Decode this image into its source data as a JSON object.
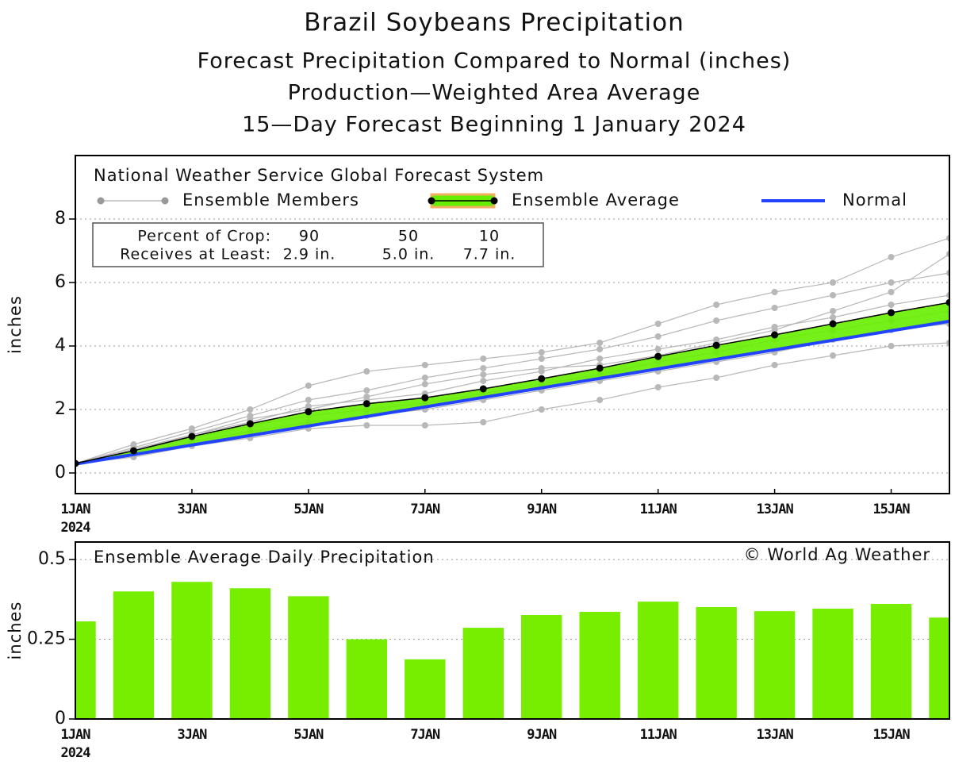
{
  "chart_data": [
    {
      "type": "line",
      "title": "Brazil Soybeans Precipitation",
      "subtitles": [
        "Forecast Precipitation Compared to Normal (inches)",
        "Production—Weighted Area Average",
        "15—Day Forecast Beginning 1 January 2024"
      ],
      "source": "National Weather Service Global Forecast System",
      "y_label": "inches",
      "x": [
        1,
        2,
        3,
        4,
        5,
        6,
        7,
        8,
        9,
        10,
        11,
        12,
        13,
        14,
        15,
        16
      ],
      "xlim": [
        1,
        16
      ],
      "xticks": [
        {
          "value": 1,
          "label": "1JAN"
        },
        {
          "value": 3,
          "label": "3JAN"
        },
        {
          "value": 5,
          "label": "5JAN"
        },
        {
          "value": 7,
          "label": "7JAN"
        },
        {
          "value": 9,
          "label": "9JAN"
        },
        {
          "value": 11,
          "label": "11JAN"
        },
        {
          "value": 13,
          "label": "13JAN"
        },
        {
          "value": 15,
          "label": "15JAN"
        }
      ],
      "x_year_label": "2024",
      "ylim": [
        -0.65,
        10
      ],
      "yticks": [
        0,
        2,
        4,
        6,
        8
      ],
      "grid": true,
      "members": {
        "name": "Ensemble Members",
        "color": "#b8b8b8",
        "values": [
          [
            0.3,
            0.9,
            1.4,
            2.0,
            2.75,
            3.2,
            3.4,
            3.6,
            3.8,
            4.1,
            4.7,
            5.3,
            5.7,
            6.0,
            6.8,
            7.4
          ],
          [
            0.3,
            0.5,
            0.85,
            1.1,
            1.4,
            1.5,
            1.5,
            1.6,
            2.0,
            2.3,
            2.7,
            3.0,
            3.4,
            3.7,
            4.0,
            4.1
          ],
          [
            0.3,
            0.8,
            1.3,
            1.8,
            2.3,
            2.6,
            3.0,
            3.3,
            3.6,
            3.9,
            4.3,
            4.8,
            5.2,
            5.6,
            6.0,
            6.3
          ],
          [
            0.3,
            0.6,
            1.0,
            1.3,
            1.6,
            1.8,
            2.0,
            2.3,
            2.6,
            2.9,
            3.2,
            3.5,
            3.8,
            4.2,
            4.5,
            4.7
          ],
          [
            0.3,
            0.7,
            1.2,
            1.6,
            2.1,
            2.3,
            2.5,
            2.9,
            3.2,
            3.6,
            3.9,
            4.2,
            4.6,
            4.9,
            5.3,
            5.6
          ],
          [
            0.3,
            0.65,
            1.1,
            1.5,
            1.8,
            2.0,
            2.2,
            2.5,
            2.8,
            3.1,
            3.5,
            3.8,
            4.2,
            4.5,
            4.8,
            5.1
          ],
          [
            0.3,
            0.75,
            1.2,
            1.7,
            2.0,
            2.4,
            2.8,
            3.1,
            3.3,
            3.4,
            3.7,
            4.1,
            4.5,
            5.1,
            5.7,
            6.9
          ]
        ]
      },
      "series": [
        {
          "name": "Ensemble Average",
          "color": "#000000",
          "fill": "#66ee00",
          "outline": "#f0b060",
          "values": [
            0.3,
            0.7,
            1.15,
            1.55,
            1.93,
            2.18,
            2.37,
            2.65,
            2.97,
            3.3,
            3.67,
            4.02,
            4.35,
            4.7,
            5.05,
            5.37
          ]
        },
        {
          "name": "Normal",
          "color": "#2244ff",
          "values": [
            0.28,
            0.58,
            0.88,
            1.18,
            1.48,
            1.78,
            2.08,
            2.38,
            2.68,
            2.98,
            3.28,
            3.58,
            3.88,
            4.18,
            4.48,
            4.78
          ]
        }
      ],
      "crop_table": {
        "row_labels": [
          "Percent of Crop:",
          "Receives at Least:"
        ],
        "percents": [
          90,
          50,
          10
        ],
        "amounts": [
          2.9,
          5.0,
          7.7
        ],
        "amount_labels": [
          "2.9 in.",
          "5.0 in.",
          "7.7 in."
        ]
      }
    },
    {
      "type": "bar",
      "title": "Ensemble Average Daily Precipitation",
      "annotation": "© World Ag Weather",
      "y_label": "inches",
      "x": [
        1,
        2,
        3,
        4,
        5,
        6,
        7,
        8,
        9,
        10,
        11,
        12,
        13,
        14,
        15,
        16
      ],
      "xlim": [
        1,
        16
      ],
      "xticks": [
        {
          "value": 1,
          "label": "1JAN"
        },
        {
          "value": 3,
          "label": "3JAN"
        },
        {
          "value": 5,
          "label": "5JAN"
        },
        {
          "value": 7,
          "label": "7JAN"
        },
        {
          "value": 9,
          "label": "9JAN"
        },
        {
          "value": 11,
          "label": "11JAN"
        },
        {
          "value": 13,
          "label": "13JAN"
        },
        {
          "value": 15,
          "label": "15JAN"
        }
      ],
      "x_year_label": "2024",
      "ylim": [
        0,
        0.555
      ],
      "yticks": [
        0,
        0.25,
        0.5
      ],
      "grid": true,
      "color": "#77ee00",
      "values": [
        0.306,
        0.4,
        0.43,
        0.41,
        0.385,
        0.25,
        0.187,
        0.286,
        0.326,
        0.336,
        0.368,
        0.351,
        0.338,
        0.346,
        0.361,
        0.318
      ]
    }
  ]
}
